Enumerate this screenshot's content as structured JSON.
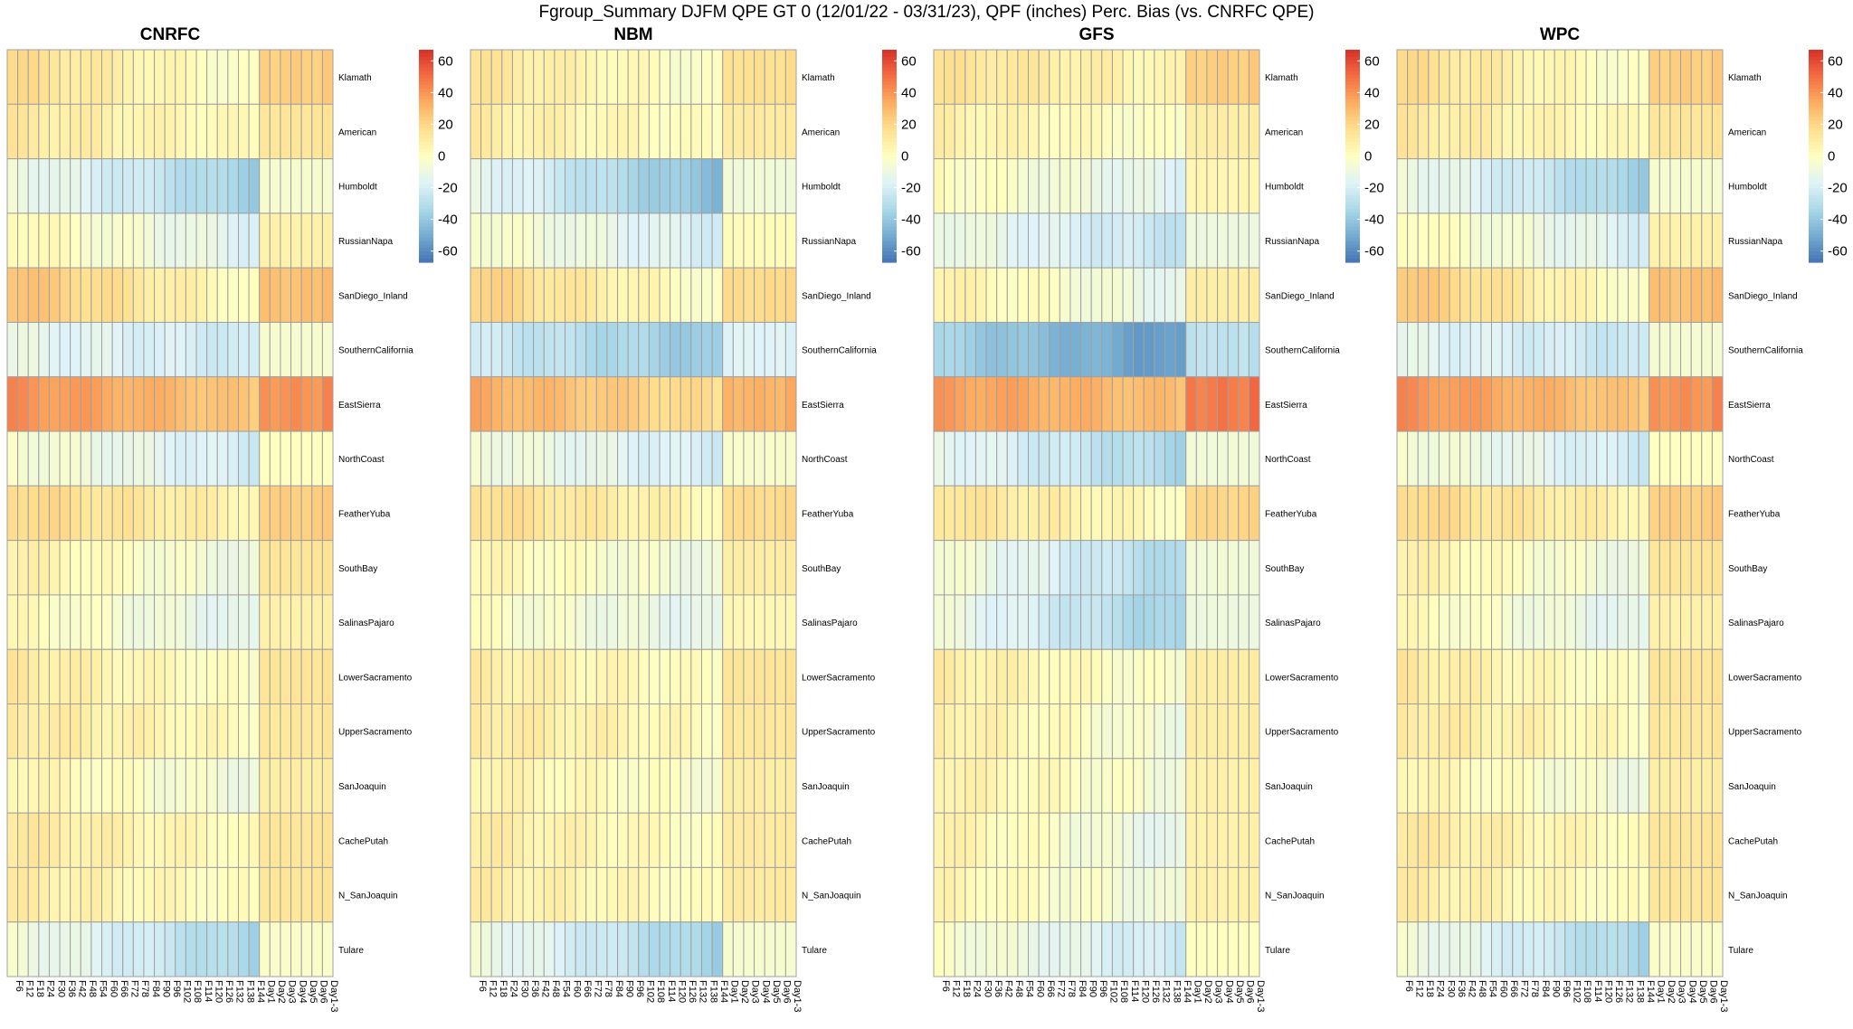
{
  "suptitle": "Fgroup_Summary DJFM QPE GT 0 (12/01/22 - 03/31/23), QPF (inches) Perc. Bias (vs. CNRFC QPE)",
  "chart_data": {
    "type": "heatmap",
    "columns": [
      "F6",
      "F12",
      "F18",
      "F24",
      "F30",
      "F36",
      "F42",
      "F48",
      "F54",
      "F60",
      "F66",
      "F72",
      "F78",
      "F84",
      "F90",
      "F96",
      "F102",
      "F108",
      "F114",
      "F120",
      "F126",
      "F132",
      "F138",
      "F144",
      "Day1",
      "Day2",
      "Day3",
      "Day4",
      "Day5",
      "Day6",
      "Day1-3"
    ],
    "rows": [
      "Klamath",
      "American",
      "Humboldt",
      "RussianNapa",
      "SanDiego_Inland",
      "SouthernCalifornia",
      "EastSierra",
      "NorthCoast",
      "FeatherYuba",
      "SouthBay",
      "SalinasPajaro",
      "LowerSacramento",
      "UpperSacramento",
      "SanJoaquin",
      "CachePutah",
      "N_SanJoaquin",
      "Tulare"
    ],
    "colorbar": {
      "ticks": [
        60,
        40,
        20,
        0,
        -20,
        -40,
        -60
      ],
      "range": [
        -67,
        67
      ],
      "colors": [
        "#4575b4",
        "#74add1",
        "#abd9e9",
        "#e0f3f8",
        "#ffffbf",
        "#fee090",
        "#fdae61",
        "#f46d43",
        "#d73027"
      ]
    },
    "panels": [
      {
        "title": "CNRFC",
        "base": [
          18,
          12,
          -8,
          5,
          28,
          -12,
          42,
          -3,
          20,
          8,
          3,
          12,
          12,
          6,
          12,
          10,
          -6
        ],
        "slope": [
          -0.6,
          -0.3,
          -0.8,
          -0.6,
          -0.8,
          -0.3,
          -0.5,
          -0.5,
          -0.4,
          -0.5,
          -0.5,
          -0.4,
          -0.3,
          -0.4,
          -0.3,
          -0.3,
          -0.8
        ],
        "end": [
          25,
          15,
          -5,
          8,
          30,
          -5,
          45,
          0,
          25,
          15,
          8,
          15,
          14,
          10,
          15,
          15,
          -3
        ]
      },
      {
        "title": "NBM",
        "base": [
          14,
          10,
          -12,
          -2,
          22,
          -22,
          34,
          -6,
          18,
          5,
          0,
          10,
          12,
          7,
          10,
          10,
          -8
        ],
        "slope": [
          -0.5,
          -0.3,
          -0.9,
          -0.5,
          -0.7,
          -0.5,
          -0.5,
          -0.4,
          -0.4,
          -0.4,
          -0.4,
          -0.3,
          -0.3,
          -0.3,
          -0.3,
          -0.3,
          -0.8
        ],
        "end": [
          18,
          12,
          -8,
          2,
          20,
          -18,
          35,
          -4,
          20,
          10,
          4,
          15,
          14,
          10,
          12,
          12,
          -5
        ]
      },
      {
        "title": "GFS",
        "base": [
          15,
          8,
          2,
          -8,
          8,
          -35,
          38,
          -12,
          15,
          -4,
          -8,
          10,
          10,
          8,
          8,
          5,
          -2
        ],
        "slope": [
          -0.3,
          -0.3,
          -0.5,
          -0.5,
          -0.6,
          -0.6,
          -0.3,
          -0.6,
          -0.4,
          -0.8,
          -0.8,
          -0.4,
          -0.5,
          -0.4,
          -0.6,
          -0.4,
          -0.6
        ],
        "end": [
          25,
          10,
          5,
          -10,
          10,
          -30,
          52,
          -8,
          22,
          -8,
          -10,
          10,
          10,
          8,
          8,
          8,
          0
        ]
      },
      {
        "title": "WPC",
        "base": [
          18,
          12,
          -8,
          3,
          26,
          -14,
          42,
          -4,
          20,
          8,
          3,
          12,
          12,
          6,
          12,
          10,
          -6
        ],
        "slope": [
          -0.6,
          -0.3,
          -0.8,
          -0.6,
          -0.8,
          -0.3,
          -0.5,
          -0.5,
          -0.4,
          -0.5,
          -0.5,
          -0.4,
          -0.3,
          -0.4,
          -0.3,
          -0.3,
          -0.8
        ],
        "end": [
          25,
          15,
          -5,
          8,
          30,
          -6,
          45,
          0,
          25,
          15,
          8,
          15,
          14,
          10,
          15,
          15,
          -3
        ]
      }
    ]
  }
}
